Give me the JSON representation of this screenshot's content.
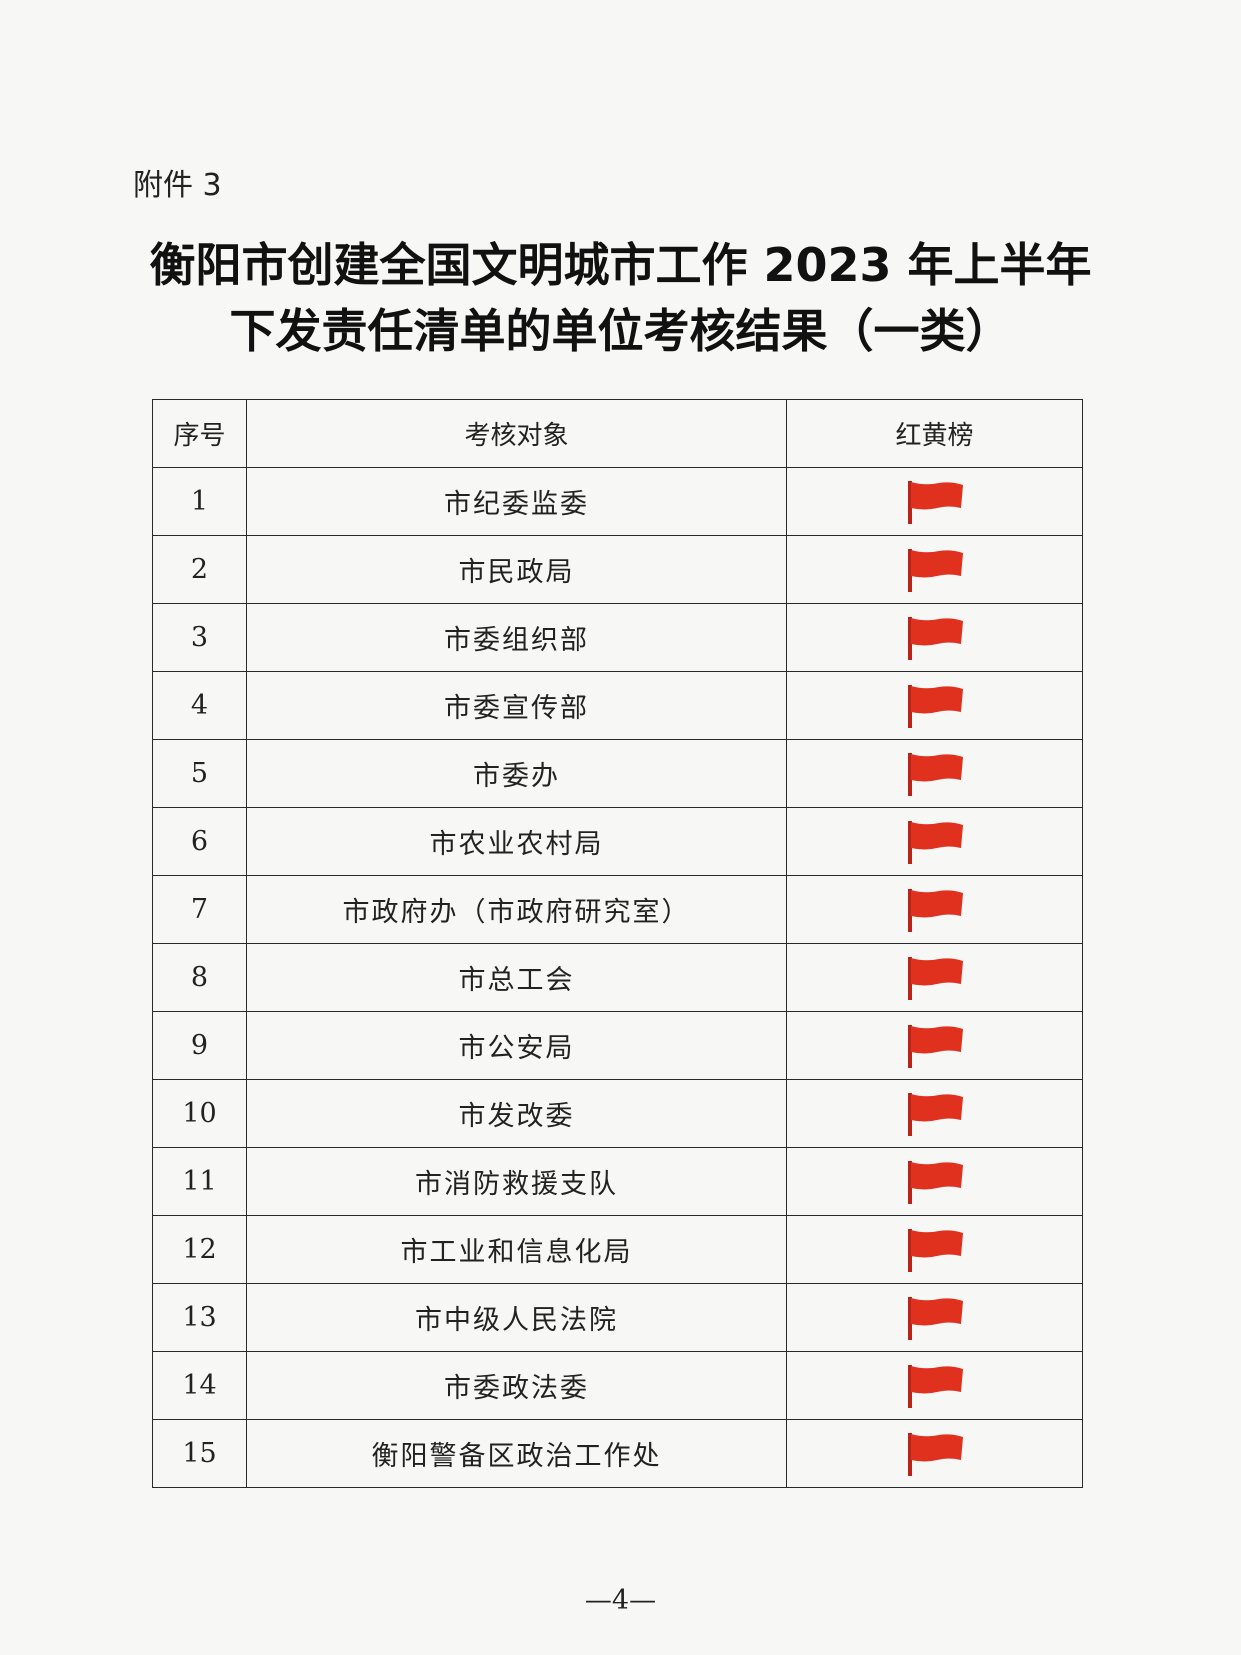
{
  "attachment_label": "附件 3",
  "title_lines": [
    "衡阳市创建全国文明城市工作 2023 年上半年",
    "下发责任清单的单位考核结果（一类）"
  ],
  "table": {
    "headers": {
      "index": "序号",
      "unit": "考核对象",
      "ranking": "红黄榜"
    },
    "rows": [
      {
        "index": "1",
        "unit": "市纪委监委",
        "ranking": "red-flag-icon"
      },
      {
        "index": "2",
        "unit": "市民政局",
        "ranking": "red-flag-icon"
      },
      {
        "index": "3",
        "unit": "市委组织部",
        "ranking": "red-flag-icon"
      },
      {
        "index": "4",
        "unit": "市委宣传部",
        "ranking": "red-flag-icon"
      },
      {
        "index": "5",
        "unit": "市委办",
        "ranking": "red-flag-icon"
      },
      {
        "index": "6",
        "unit": "市农业农村局",
        "ranking": "red-flag-icon"
      },
      {
        "index": "7",
        "unit": "市政府办（市政府研究室）",
        "ranking": "red-flag-icon"
      },
      {
        "index": "8",
        "unit": "市总工会",
        "ranking": "red-flag-icon"
      },
      {
        "index": "9",
        "unit": "市公安局",
        "ranking": "red-flag-icon"
      },
      {
        "index": "10",
        "unit": "市发改委",
        "ranking": "red-flag-icon"
      },
      {
        "index": "11",
        "unit": "市消防救援支队",
        "ranking": "red-flag-icon"
      },
      {
        "index": "12",
        "unit": "市工业和信息化局",
        "ranking": "red-flag-icon"
      },
      {
        "index": "13",
        "unit": "市中级人民法院",
        "ranking": "red-flag-icon"
      },
      {
        "index": "14",
        "unit": "市委政法委",
        "ranking": "red-flag-icon"
      },
      {
        "index": "15",
        "unit": "衡阳警备区政治工作处",
        "ranking": "red-flag-icon"
      }
    ]
  },
  "page_number": "—4—",
  "colors": {
    "flag": "#e0301e",
    "pole": "#b8241a"
  }
}
